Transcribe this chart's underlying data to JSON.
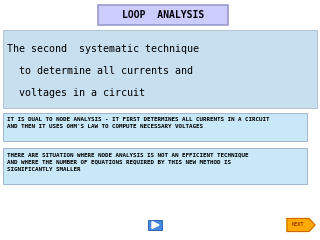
{
  "title": "LOOP  ANALYSIS",
  "title_box_color": "#ccccff",
  "title_box_edge": "#9999cc",
  "bg_color": "#ffffff",
  "main_text_bg": "#c8dff0",
  "main_text_line1": "The second  systematic technique",
  "main_text_line2": "  to determine all currents and",
  "main_text_line3": "  voltages in a circuit",
  "box1_bg": "#c8e8f8",
  "box1_edge": "#99aacc",
  "box1_text": "IT IS DUAL TO NODE ANALYSIS - IT FIRST DETERMINES ALL CURRENTS IN A CIRCUIT\nAND THEN IT USES OHM'S LAW TO COMPUTE NECESSARY VOLTAGES",
  "box2_bg": "#c8e8f8",
  "box2_edge": "#99aacc",
  "box2_text": "THERE ARE SITUATION WHERE NODE ANALYSIS IS NOT AN EFFICIENT TECHNIQUE\nAND WHERE THE NUMBER OF EQUATIONS REQUIRED BY THIS NEW METHOD IS\nSIGNIFICANTLY SMALLER",
  "nav_btn_face": "#4488dd",
  "nav_btn_edge": "#2255aa",
  "next_face": "#ffaa00",
  "next_edge": "#cc6600",
  "next_label": "NEXT",
  "next_label_color": "#993300"
}
